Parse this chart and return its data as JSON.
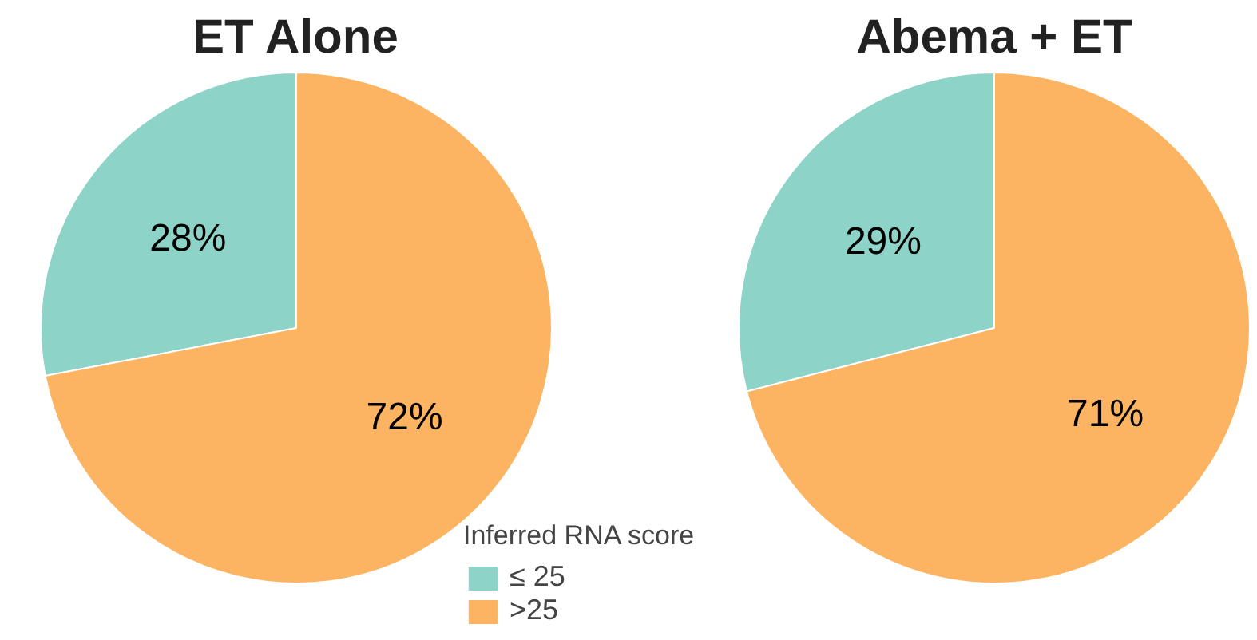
{
  "chart_data": [
    {
      "type": "pie",
      "title": "ET Alone",
      "legend_title": "Inferred RNA score",
      "categories": [
        "≤ 25",
        ">25"
      ],
      "values": [
        28,
        72
      ],
      "colors": [
        "#8dd3c7",
        "#fdb462"
      ],
      "value_labels": [
        "28%",
        "72%"
      ],
      "legend": "bottom right"
    },
    {
      "type": "pie",
      "title": "Abema + ET",
      "categories": [
        null,
        null
      ],
      "values": [
        29,
        71
      ],
      "colors": [
        "#8dd3c7",
        "#fdb462"
      ],
      "value_labels": [
        "29%",
        "71%"
      ]
    }
  ]
}
